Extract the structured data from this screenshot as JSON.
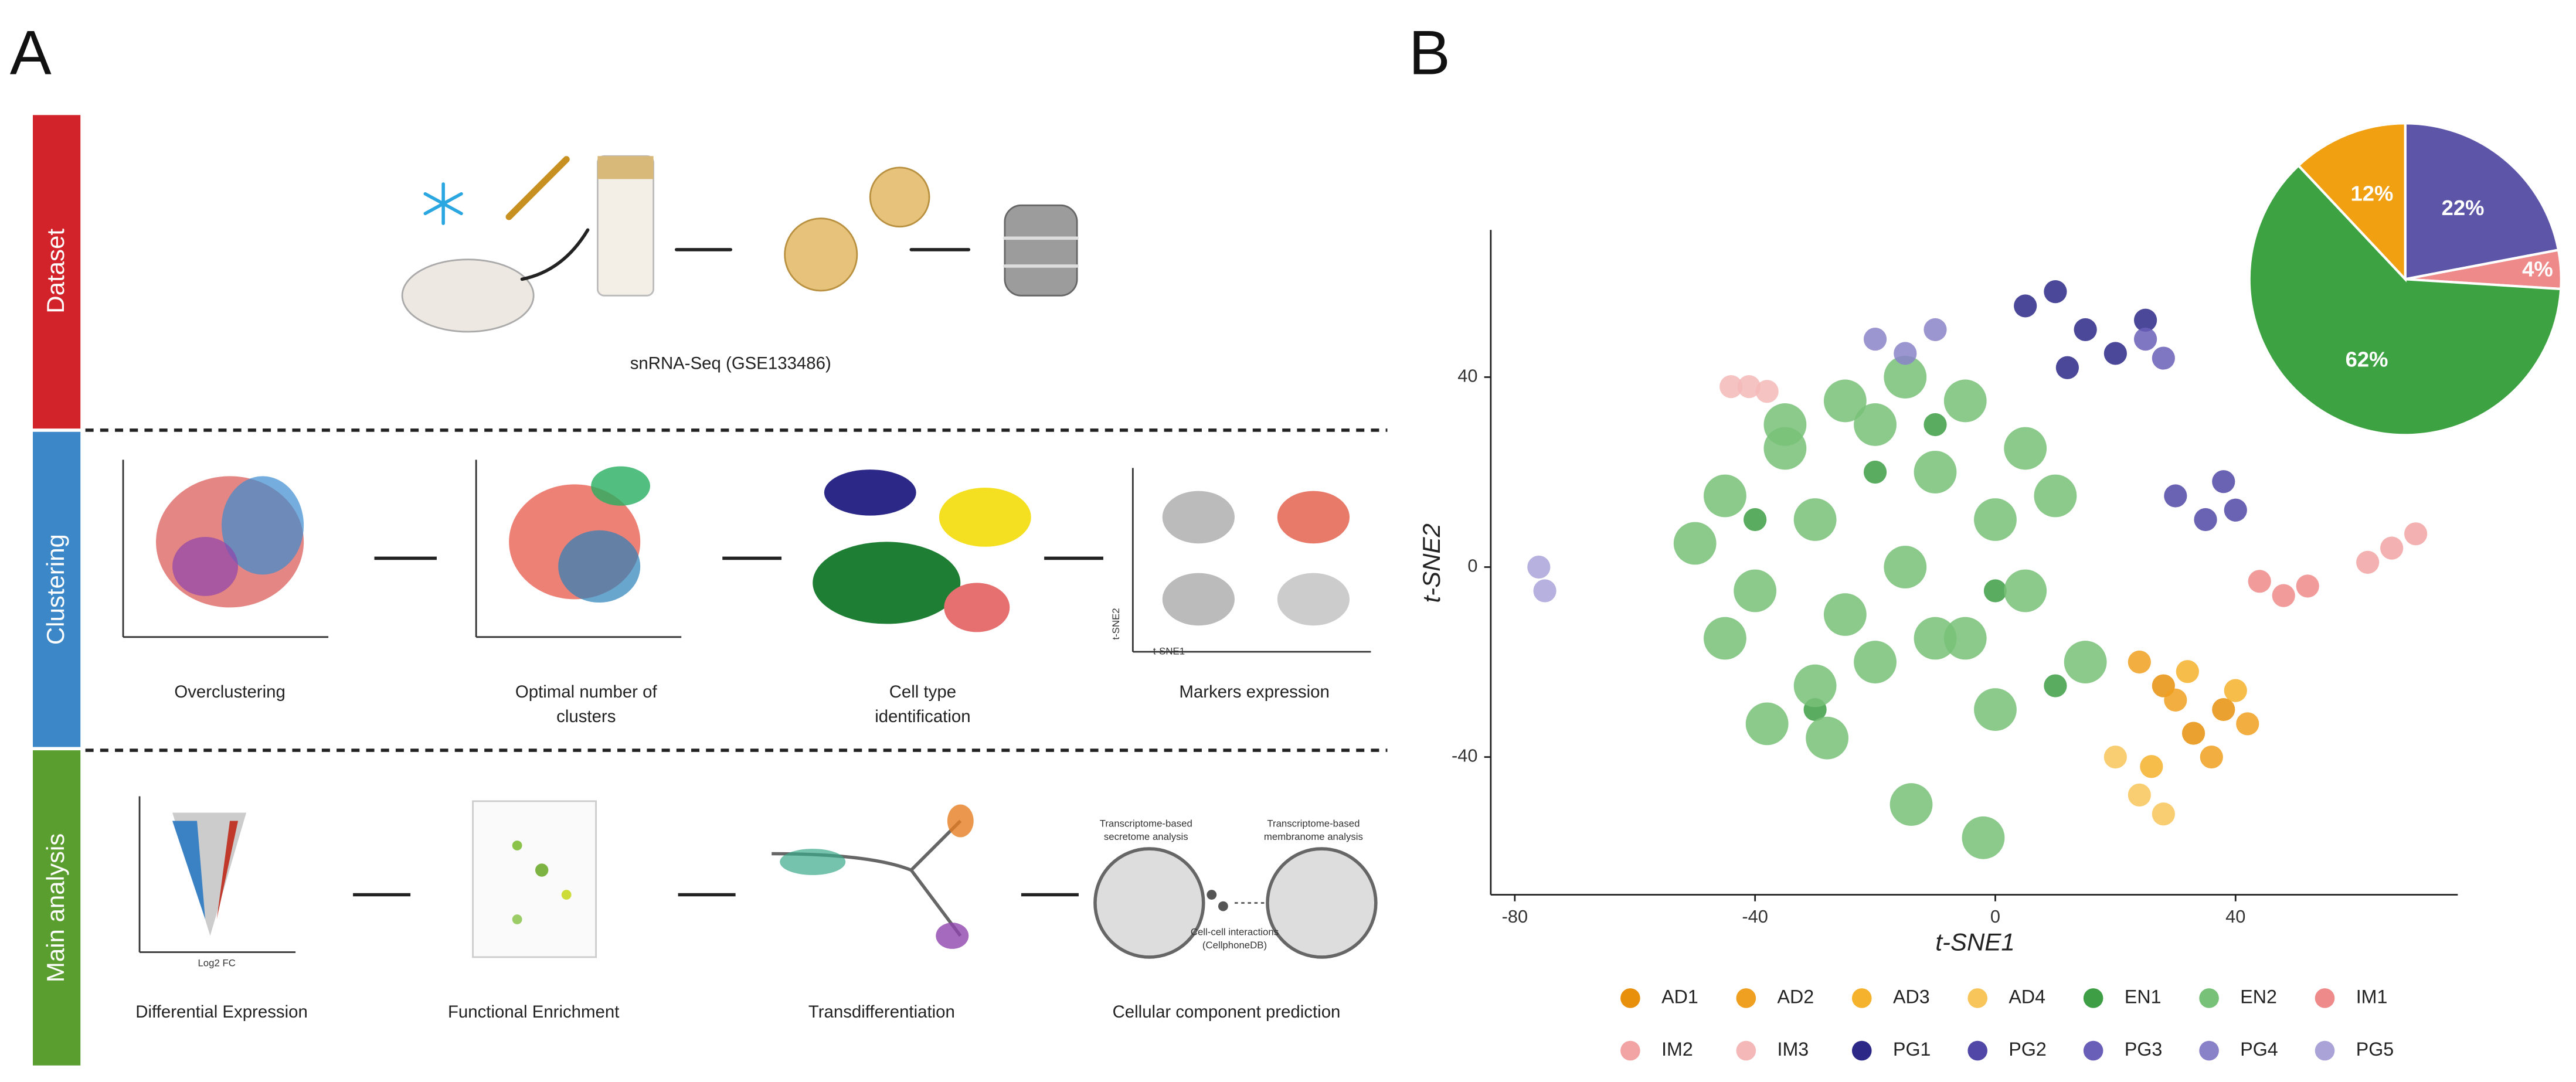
{
  "panel_a": {
    "label": "A",
    "rows": [
      {
        "title": "Dataset",
        "steps": [
          [
            "snRNA-Seq (GSE133486)"
          ]
        ]
      },
      {
        "title": "Clustering",
        "steps": [
          [
            "Overclustering"
          ],
          [
            "Optimal number of",
            "clusters"
          ],
          [
            "Cell type",
            "identification"
          ],
          [
            "Markers expression"
          ]
        ]
      },
      {
        "title": "Main analysis",
        "steps": [
          [
            "Differential Expression"
          ],
          [
            "Functional Enrichment"
          ],
          [
            "Transdifferentiation"
          ],
          [
            "Cellular component prediction"
          ]
        ]
      }
    ],
    "notes": {
      "secretome": [
        "Transcriptome-based",
        "secretome analysis"
      ],
      "membranome": [
        "Transcriptome-based",
        "membranome analysis"
      ],
      "interactions": [
        "Cell-cell interactions",
        "(CellphoneDB)"
      ],
      "volcano_x": "Log2 FC",
      "markers_x": "t-SNE1",
      "markers_y": "t-SNE2"
    }
  },
  "chart_data": [
    {
      "type": "scatter",
      "panel_label": "B",
      "x_label": "t-SNE1",
      "y_label": "t-SNE2",
      "xlim": [
        -84,
        77
      ],
      "ylim": [
        -69,
        71
      ],
      "xticks": [
        -80,
        -40,
        0,
        40
      ],
      "yticks": [
        -40,
        0,
        40
      ],
      "series": [
        {
          "name": "AD1",
          "color": "#e8900c",
          "x": [
            28,
            33,
            38
          ],
          "y": [
            -25,
            -35,
            -30
          ]
        },
        {
          "name": "AD2",
          "color": "#f0a020",
          "x": [
            24,
            30,
            36,
            42
          ],
          "y": [
            -20,
            -28,
            -40,
            -33
          ]
        },
        {
          "name": "AD3",
          "color": "#f5b22c",
          "x": [
            26,
            32,
            40
          ],
          "y": [
            -42,
            -22,
            -26
          ]
        },
        {
          "name": "AD4",
          "color": "#f8c55a",
          "x": [
            20,
            24,
            28
          ],
          "y": [
            -40,
            -48,
            -52
          ]
        },
        {
          "name": "EN1",
          "color": "#3d9e45",
          "x": [
            -40,
            -20,
            0,
            10,
            -30,
            -10
          ],
          "y": [
            10,
            20,
            -5,
            -25,
            -30,
            30
          ]
        },
        {
          "name": "EN2",
          "color": "#78c178",
          "x": [
            -50,
            -45,
            -40,
            -35,
            -30,
            -25,
            -20,
            -15,
            -10,
            -5,
            0,
            5,
            10,
            15,
            -45,
            -35,
            -25,
            -15,
            -5,
            5,
            -30,
            -20,
            -10,
            0,
            -38,
            -28,
            -14,
            -2
          ],
          "y": [
            5,
            15,
            -5,
            25,
            10,
            -10,
            30,
            0,
            20,
            -15,
            10,
            -5,
            15,
            -20,
            -15,
            30,
            35,
            40,
            35,
            25,
            -25,
            -20,
            -15,
            -30,
            -33,
            -36,
            -50,
            -57
          ]
        },
        {
          "name": "IM1",
          "color": "#ee8a8a",
          "x": [
            44,
            48,
            52
          ],
          "y": [
            -3,
            -6,
            -4
          ]
        },
        {
          "name": "IM2",
          "color": "#f2a3a3",
          "x": [
            62,
            66,
            70
          ],
          "y": [
            1,
            4,
            7
          ]
        },
        {
          "name": "IM3",
          "color": "#f5b8b8",
          "x": [
            -44,
            -41,
            -38
          ],
          "y": [
            38,
            38,
            37
          ]
        },
        {
          "name": "PG1",
          "color": "#2b2887",
          "x": [
            5,
            10,
            15,
            20,
            25,
            12
          ],
          "y": [
            55,
            58,
            50,
            45,
            52,
            42
          ]
        },
        {
          "name": "PG2",
          "color": "#5047a6",
          "x": [
            30,
            35,
            40,
            38
          ],
          "y": [
            15,
            10,
            12,
            18
          ]
        },
        {
          "name": "PG3",
          "color": "#6a5fb8",
          "x": [
            25,
            28
          ],
          "y": [
            48,
            44
          ]
        },
        {
          "name": "PG4",
          "color": "#8a82c8",
          "x": [
            -20,
            -15,
            -10
          ],
          "y": [
            48,
            45,
            50
          ]
        },
        {
          "name": "PG5",
          "color": "#a9a3d8",
          "x": [
            -76,
            -75
          ],
          "y": [
            0,
            -5
          ]
        }
      ]
    },
    {
      "type": "pie",
      "values": [
        22,
        4,
        62,
        12
      ],
      "value_labels": [
        "22%",
        "4%",
        "62%",
        "12%"
      ],
      "colors": [
        "#5d55a8",
        "#ee8a8a",
        "#3da342",
        "#f0a010"
      ]
    }
  ]
}
